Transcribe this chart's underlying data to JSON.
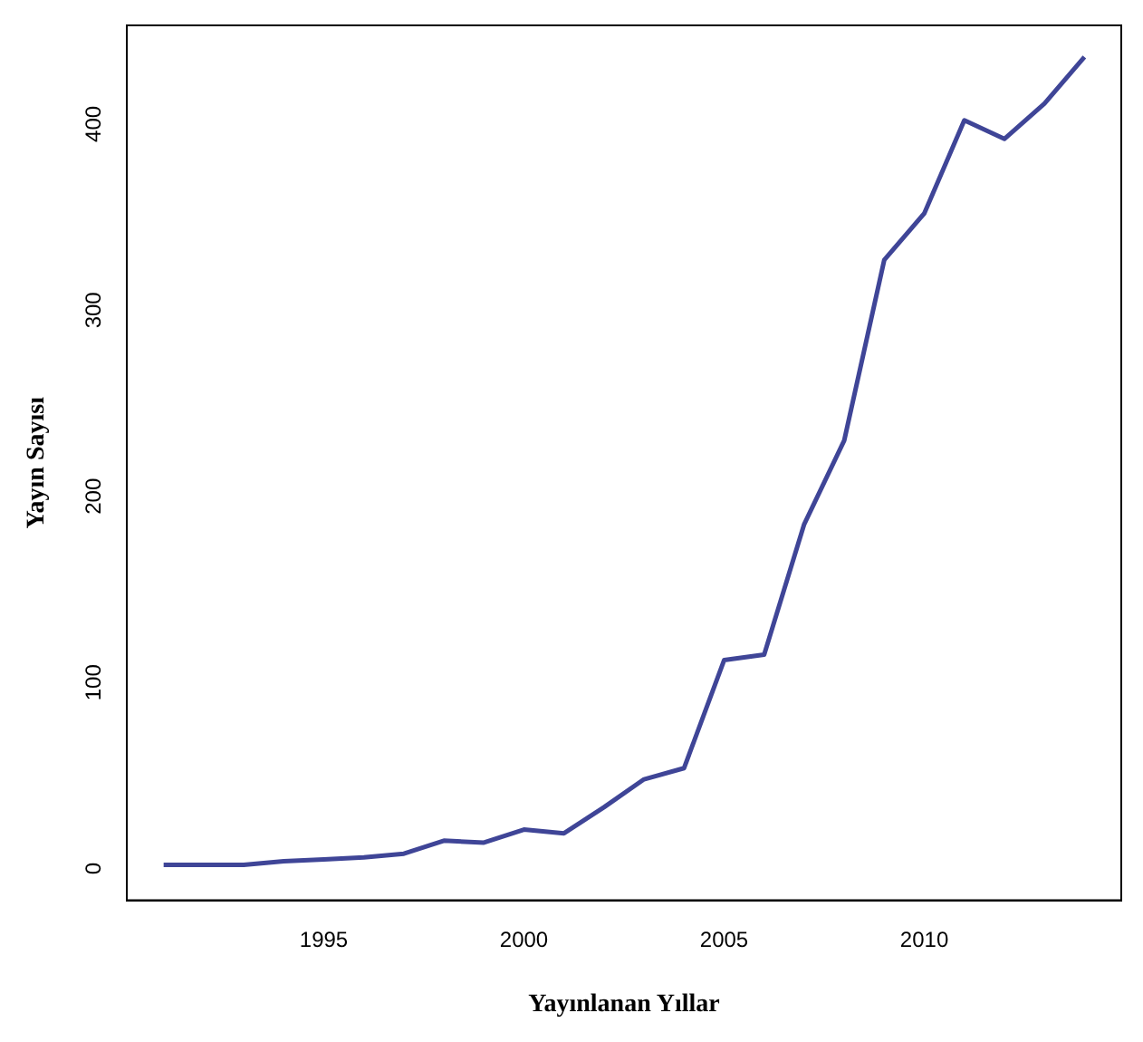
{
  "chart_data": {
    "type": "line",
    "xlabel": "Yayınlanan Yıllar",
    "ylabel": "Yayın Sayısı",
    "x": [
      1991,
      1992,
      1993,
      1994,
      1995,
      1996,
      1997,
      1998,
      1999,
      2000,
      2001,
      2002,
      2003,
      2004,
      2005,
      2006,
      2007,
      2008,
      2009,
      2010,
      2011,
      2012,
      2013,
      2014
    ],
    "series": [
      {
        "color": "#3f4597",
        "values": [
          2,
          2,
          2,
          4,
          5,
          6,
          8,
          15,
          14,
          21,
          19,
          33,
          48,
          54,
          112,
          115,
          185,
          230,
          327,
          352,
          402,
          392,
          411,
          436
        ]
      }
    ],
    "xlim": [
      1990.08,
      2014.92
    ],
    "xticks": [
      1995,
      2000,
      2005,
      2010
    ],
    "ylim": [
      -17,
      453
    ],
    "yticks": [
      0,
      100,
      200,
      300,
      400
    ],
    "grid": false,
    "legend": false,
    "marker": "none",
    "line_style": "solid"
  }
}
